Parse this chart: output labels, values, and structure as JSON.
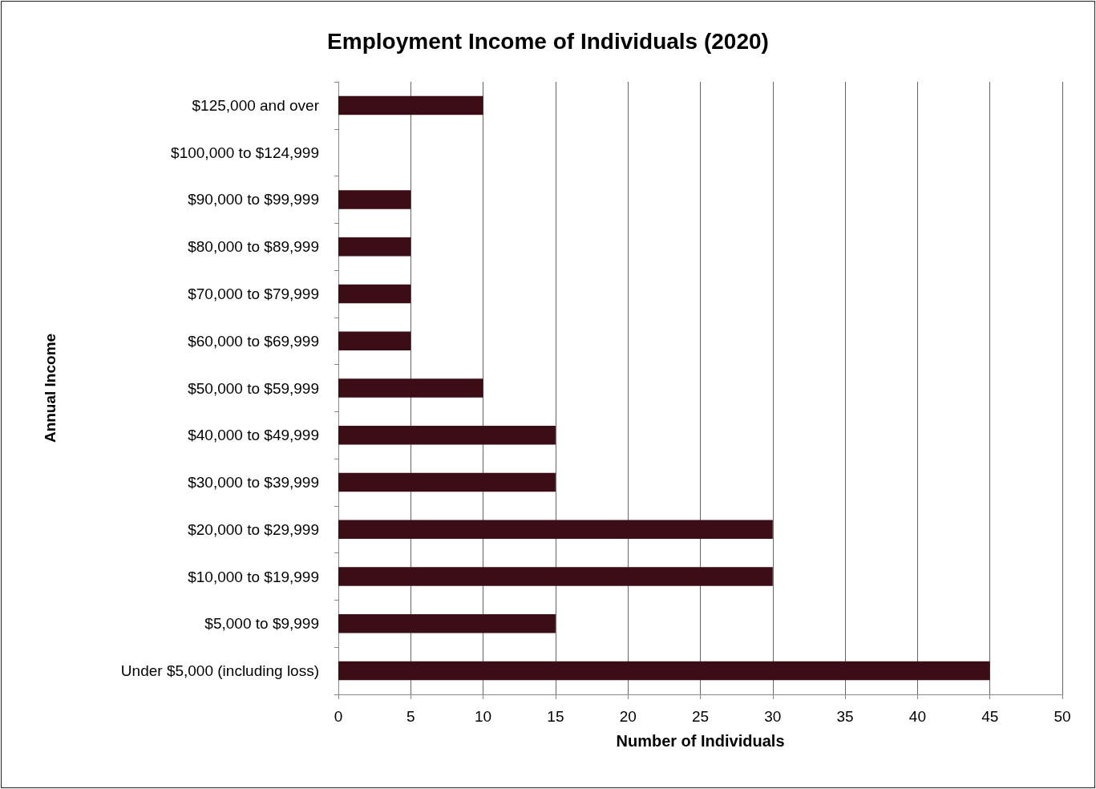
{
  "chart_data": {
    "type": "bar",
    "orientation": "horizontal",
    "title": "Employment Income of Individuals (2020)",
    "xlabel": "Number of Individuals",
    "ylabel": "Annual Income",
    "categories": [
      "$125,000 and over",
      "$100,000 to $124,999",
      "$90,000 to $99,999",
      "$80,000 to $89,999",
      "$70,000 to $79,999",
      "$60,000 to $69,999",
      "$50,000 to $59,999",
      "$40,000 to $49,999",
      "$30,000 to $39,999",
      "$20,000 to $29,999",
      "$10,000 to $19,999",
      "$5,000 to $9,999",
      "Under $5,000 (including loss)"
    ],
    "values": [
      10,
      0,
      5,
      5,
      5,
      5,
      10,
      15,
      15,
      30,
      30,
      15,
      45
    ],
    "color": "#3b0d17",
    "xlim": [
      0,
      50
    ],
    "xticks": [
      0,
      5,
      10,
      15,
      20,
      25,
      30,
      35,
      40,
      45,
      50
    ],
    "grid": "x"
  }
}
